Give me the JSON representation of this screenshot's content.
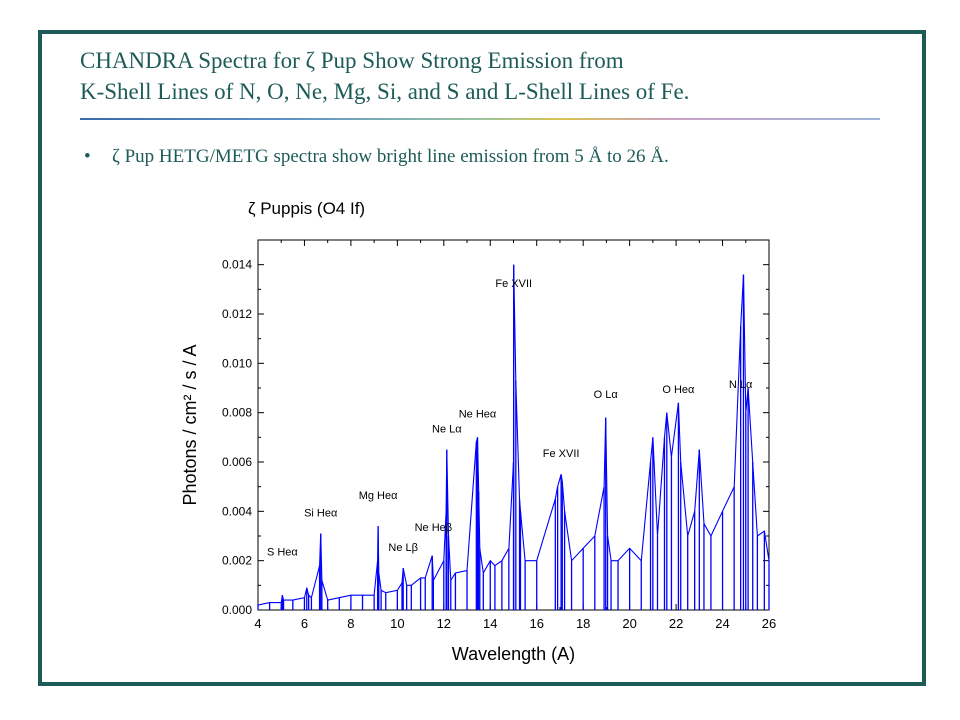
{
  "slide": {
    "title_line1": "CHANDRA Spectra for ζ Pup Show Strong Emission from",
    "title_line2": "K-Shell Lines of N, O, Ne, Mg, Si, and S and L-Shell Lines of Fe.",
    "bullet_symbol": "•",
    "bullet_text": "ζ Pup HETG/METG spectra show bright line emission from 5 Å to 26 Å."
  },
  "colors": {
    "frame": "#1d5b57",
    "text": "#1d5b57",
    "plot_title": "#cc1111",
    "series": "#0000ff"
  },
  "chart_data": {
    "type": "line",
    "title": "ζ Puppis (O4 If)",
    "xlabel": "Wavelength (A)",
    "ylabel": "Photons / cm² / s / A",
    "xlim": [
      4,
      26
    ],
    "ylim": [
      0,
      0.015
    ],
    "xticks": [
      "4",
      "6",
      "8",
      "10",
      "12",
      "14",
      "16",
      "18",
      "20",
      "22",
      "24",
      "26"
    ],
    "yticks": [
      "0.000",
      "0.002",
      "0.004",
      "0.006",
      "0.008",
      "0.010",
      "0.012",
      "0.014"
    ],
    "grid": false,
    "series": [
      {
        "x": [
          4.0,
          4.5,
          5.0,
          5.05,
          5.1,
          5.5,
          6.0,
          6.1,
          6.18,
          6.3,
          6.65,
          6.7,
          6.75,
          7.0,
          7.5,
          8.0,
          8.5,
          9.0,
          9.15,
          9.17,
          9.2,
          9.3,
          9.5,
          10.0,
          10.2,
          10.25,
          10.4,
          10.6,
          11.0,
          11.2,
          11.5,
          11.55,
          12.0,
          12.1,
          12.13,
          12.2,
          12.3,
          12.5,
          13.0,
          13.4,
          13.45,
          13.5,
          13.55,
          13.7,
          14.0,
          14.2,
          14.5,
          14.8,
          15.0,
          15.01,
          15.1,
          15.26,
          15.3,
          15.5,
          16.0,
          16.8,
          16.9,
          17.05,
          17.1,
          17.2,
          17.5,
          18.0,
          18.5,
          18.9,
          18.97,
          19.05,
          19.2,
          19.5,
          20.0,
          20.5,
          20.9,
          21.0,
          21.2,
          21.5,
          21.6,
          21.8,
          22.1,
          22.2,
          22.5,
          22.8,
          23.0,
          23.2,
          23.5,
          24.0,
          24.5,
          24.78,
          24.9,
          25.0,
          25.1,
          25.3,
          25.5,
          25.8,
          26.0
        ],
        "y": [
          0.0002,
          0.0003,
          0.0003,
          0.0006,
          0.0004,
          0.0004,
          0.0005,
          0.0009,
          0.0006,
          0.0005,
          0.0018,
          0.0031,
          0.0012,
          0.0004,
          0.0005,
          0.0006,
          0.0006,
          0.0006,
          0.002,
          0.0034,
          0.0015,
          0.0008,
          0.0007,
          0.0008,
          0.0011,
          0.0017,
          0.001,
          0.001,
          0.0013,
          0.0013,
          0.0022,
          0.0012,
          0.002,
          0.004,
          0.0065,
          0.003,
          0.0012,
          0.0015,
          0.0016,
          0.0068,
          0.007,
          0.0048,
          0.0025,
          0.0015,
          0.002,
          0.0018,
          0.002,
          0.0025,
          0.006,
          0.014,
          0.0093,
          0.0045,
          0.004,
          0.002,
          0.002,
          0.0045,
          0.005,
          0.0055,
          0.0052,
          0.004,
          0.002,
          0.0025,
          0.003,
          0.005,
          0.0078,
          0.003,
          0.002,
          0.002,
          0.0025,
          0.002,
          0.006,
          0.007,
          0.003,
          0.007,
          0.008,
          0.0062,
          0.0084,
          0.006,
          0.003,
          0.004,
          0.0065,
          0.0035,
          0.003,
          0.004,
          0.005,
          0.0115,
          0.0136,
          0.008,
          0.009,
          0.006,
          0.003,
          0.0032,
          0.002
        ]
      }
    ],
    "annotations": [
      {
        "text": "S Heα",
        "x": 5.05,
        "y": 0.0022
      },
      {
        "text": "Si Heα",
        "x": 6.7,
        "y": 0.0038
      },
      {
        "text": "Mg Heα",
        "x": 9.17,
        "y": 0.0045
      },
      {
        "text": "Ne Heβ",
        "x": 11.55,
        "y": 0.0032
      },
      {
        "text": "Ne Lβ",
        "x": 10.25,
        "y": 0.0024
      },
      {
        "text": "Ne Lα",
        "x": 12.13,
        "y": 0.0072
      },
      {
        "text": "Ne Heα",
        "x": 13.45,
        "y": 0.0078
      },
      {
        "text": "Fe XVII",
        "x": 15.01,
        "y": 0.0131
      },
      {
        "text": "Fe XVII",
        "x": 17.05,
        "y": 0.0062
      },
      {
        "text": "O Lα",
        "x": 18.97,
        "y": 0.0086
      },
      {
        "text": "O Heα",
        "x": 22.1,
        "y": 0.0088
      },
      {
        "text": "N Lα",
        "x": 24.78,
        "y": 0.009
      }
    ]
  }
}
